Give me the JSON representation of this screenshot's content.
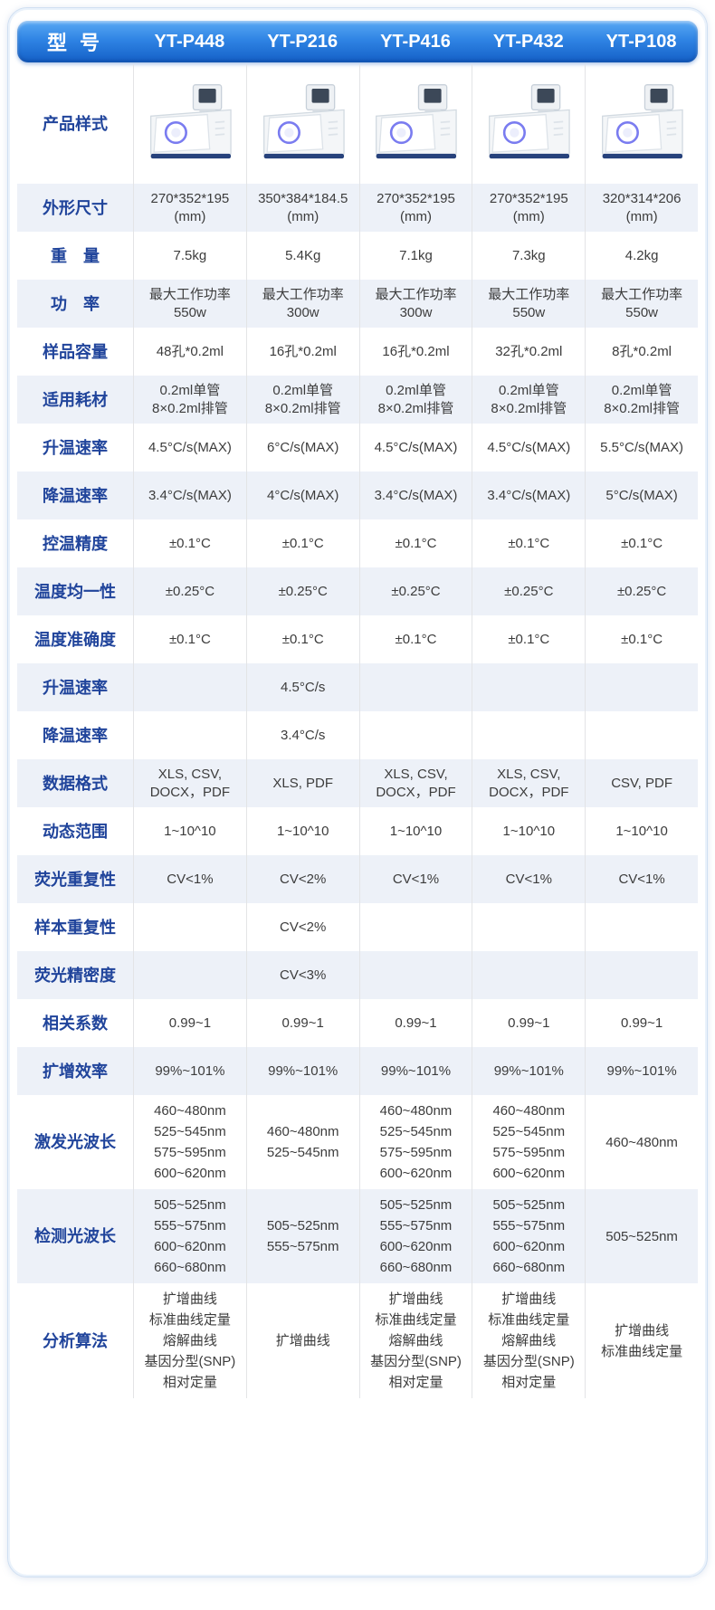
{
  "header": {
    "model_label": "型 号",
    "models": [
      "YT-P448",
      "YT-P216",
      "YT-P416",
      "YT-P432",
      "YT-P108"
    ]
  },
  "rows": [
    {
      "id": "product-style",
      "label": "产品样式",
      "type": "image"
    },
    {
      "id": "dimensions",
      "label": "外形尺寸",
      "values": [
        "270*352*195\n(mm)",
        "350*384*184.5\n(mm)",
        "270*352*195\n(mm)",
        "270*352*195\n(mm)",
        "320*314*206\n(mm)"
      ]
    },
    {
      "id": "weight",
      "label": "重　量",
      "values": [
        "7.5kg",
        "5.4Kg",
        "7.1kg",
        "7.3kg",
        "4.2kg"
      ]
    },
    {
      "id": "power",
      "label": "功　率",
      "values": [
        "最大工作功率\n550w",
        "最大工作功率\n300w",
        "最大工作功率\n300w",
        "最大工作功率\n550w",
        "最大工作功率\n550w"
      ]
    },
    {
      "id": "sample-capacity",
      "label": "样品容量",
      "values": [
        "48孔*0.2ml",
        "16孔*0.2ml",
        "16孔*0.2ml",
        "32孔*0.2ml",
        "8孔*0.2ml"
      ]
    },
    {
      "id": "consumables",
      "label": "适用耗材",
      "values": [
        "0.2ml单管\n8×0.2ml排管",
        "0.2ml单管\n8×0.2ml排管",
        "0.2ml单管\n8×0.2ml排管",
        "0.2ml单管\n8×0.2ml排管",
        "0.2ml单管\n8×0.2ml排管"
      ]
    },
    {
      "id": "heating-rate",
      "label": "升温速率",
      "values": [
        "4.5°C/s(MAX)",
        "6°C/s(MAX)",
        "4.5°C/s(MAX)",
        "4.5°C/s(MAX)",
        "5.5°C/s(MAX)"
      ]
    },
    {
      "id": "cooling-rate",
      "label": "降温速率",
      "values": [
        "3.4°C/s(MAX)",
        "4°C/s(MAX)",
        "3.4°C/s(MAX)",
        "3.4°C/s(MAX)",
        "5°C/s(MAX)"
      ]
    },
    {
      "id": "temp-control-precision",
      "label": "控温精度",
      "values": [
        "±0.1°C",
        "±0.1°C",
        "±0.1°C",
        "±0.1°C",
        "±0.1°C"
      ]
    },
    {
      "id": "temp-uniformity",
      "label": "温度均一性",
      "values": [
        "±0.25°C",
        "±0.25°C",
        "±0.25°C",
        "±0.25°C",
        "±0.25°C"
      ]
    },
    {
      "id": "temp-accuracy",
      "label": "温度准确度",
      "values": [
        "±0.1°C",
        "±0.1°C",
        "±0.1°C",
        "±0.1°C",
        "±0.1°C"
      ]
    },
    {
      "id": "heating-rate-2",
      "label": "升温速率",
      "values": [
        "",
        "4.5°C/s",
        "",
        "",
        ""
      ]
    },
    {
      "id": "cooling-rate-2",
      "label": "降温速率",
      "values": [
        "",
        "3.4°C/s",
        "",
        "",
        ""
      ]
    },
    {
      "id": "data-format",
      "label": "数据格式",
      "values": [
        "XLS, CSV,\nDOCX，PDF",
        "XLS, PDF",
        "XLS, CSV,\nDOCX，PDF",
        "XLS, CSV,\nDOCX，PDF",
        "CSV, PDF"
      ]
    },
    {
      "id": "dynamic-range",
      "label": "动态范围",
      "values": [
        "1~10^10",
        "1~10^10",
        "1~10^10",
        "1~10^10",
        "1~10^10"
      ]
    },
    {
      "id": "fluorescence-repeatability",
      "label": "荧光重复性",
      "values": [
        "CV<1%",
        "CV<2%",
        "CV<1%",
        "CV<1%",
        "CV<1%"
      ]
    },
    {
      "id": "sample-repeatability",
      "label": "样本重复性",
      "values": [
        "",
        "CV<2%",
        "",
        "",
        ""
      ]
    },
    {
      "id": "fluorescence-precision",
      "label": "荧光精密度",
      "values": [
        "",
        "CV<3%",
        "",
        "",
        ""
      ]
    },
    {
      "id": "correlation-coefficient",
      "label": "相关系数",
      "values": [
        "0.99~1",
        "0.99~1",
        "0.99~1",
        "0.99~1",
        "0.99~1"
      ]
    },
    {
      "id": "amplification-efficiency",
      "label": "扩增效率",
      "values": [
        "99%~101%",
        "99%~101%",
        "99%~101%",
        "99%~101%",
        "99%~101%"
      ]
    },
    {
      "id": "excitation-wavelength",
      "label": "激发光波长",
      "tall": true,
      "values": [
        "460~480nm\n525~545nm\n575~595nm\n600~620nm",
        "460~480nm\n525~545nm",
        "460~480nm\n525~545nm\n575~595nm\n600~620nm",
        "460~480nm\n525~545nm\n575~595nm\n600~620nm",
        "460~480nm"
      ]
    },
    {
      "id": "detection-wavelength",
      "label": "检测光波长",
      "tall": true,
      "values": [
        "505~525nm\n555~575nm\n600~620nm\n660~680nm",
        "505~525nm\n555~575nm",
        "505~525nm\n555~575nm\n600~620nm\n660~680nm",
        "505~525nm\n555~575nm\n600~620nm\n660~680nm",
        "505~525nm"
      ]
    },
    {
      "id": "analysis-algorithm",
      "label": "分析算法",
      "tall": true,
      "values": [
        "扩增曲线\n标准曲线定量\n熔解曲线\n基因分型(SNP)\n相对定量",
        "扩增曲线",
        "扩增曲线\n标准曲线定量\n熔解曲线\n基因分型(SNP)\n相对定量",
        "扩增曲线\n标准曲线定量\n熔解曲线\n基因分型(SNP)\n相对定量",
        "扩增曲线\n标准曲线定量"
      ]
    }
  ],
  "colors": {
    "header_gradient_top": "#5aa9f4",
    "header_gradient_bottom": "#1460c7",
    "label_blue": "#20449b",
    "light_row": "#edf1f8",
    "card_border": "#cfdff2",
    "device_base_blue": "#27427c"
  }
}
